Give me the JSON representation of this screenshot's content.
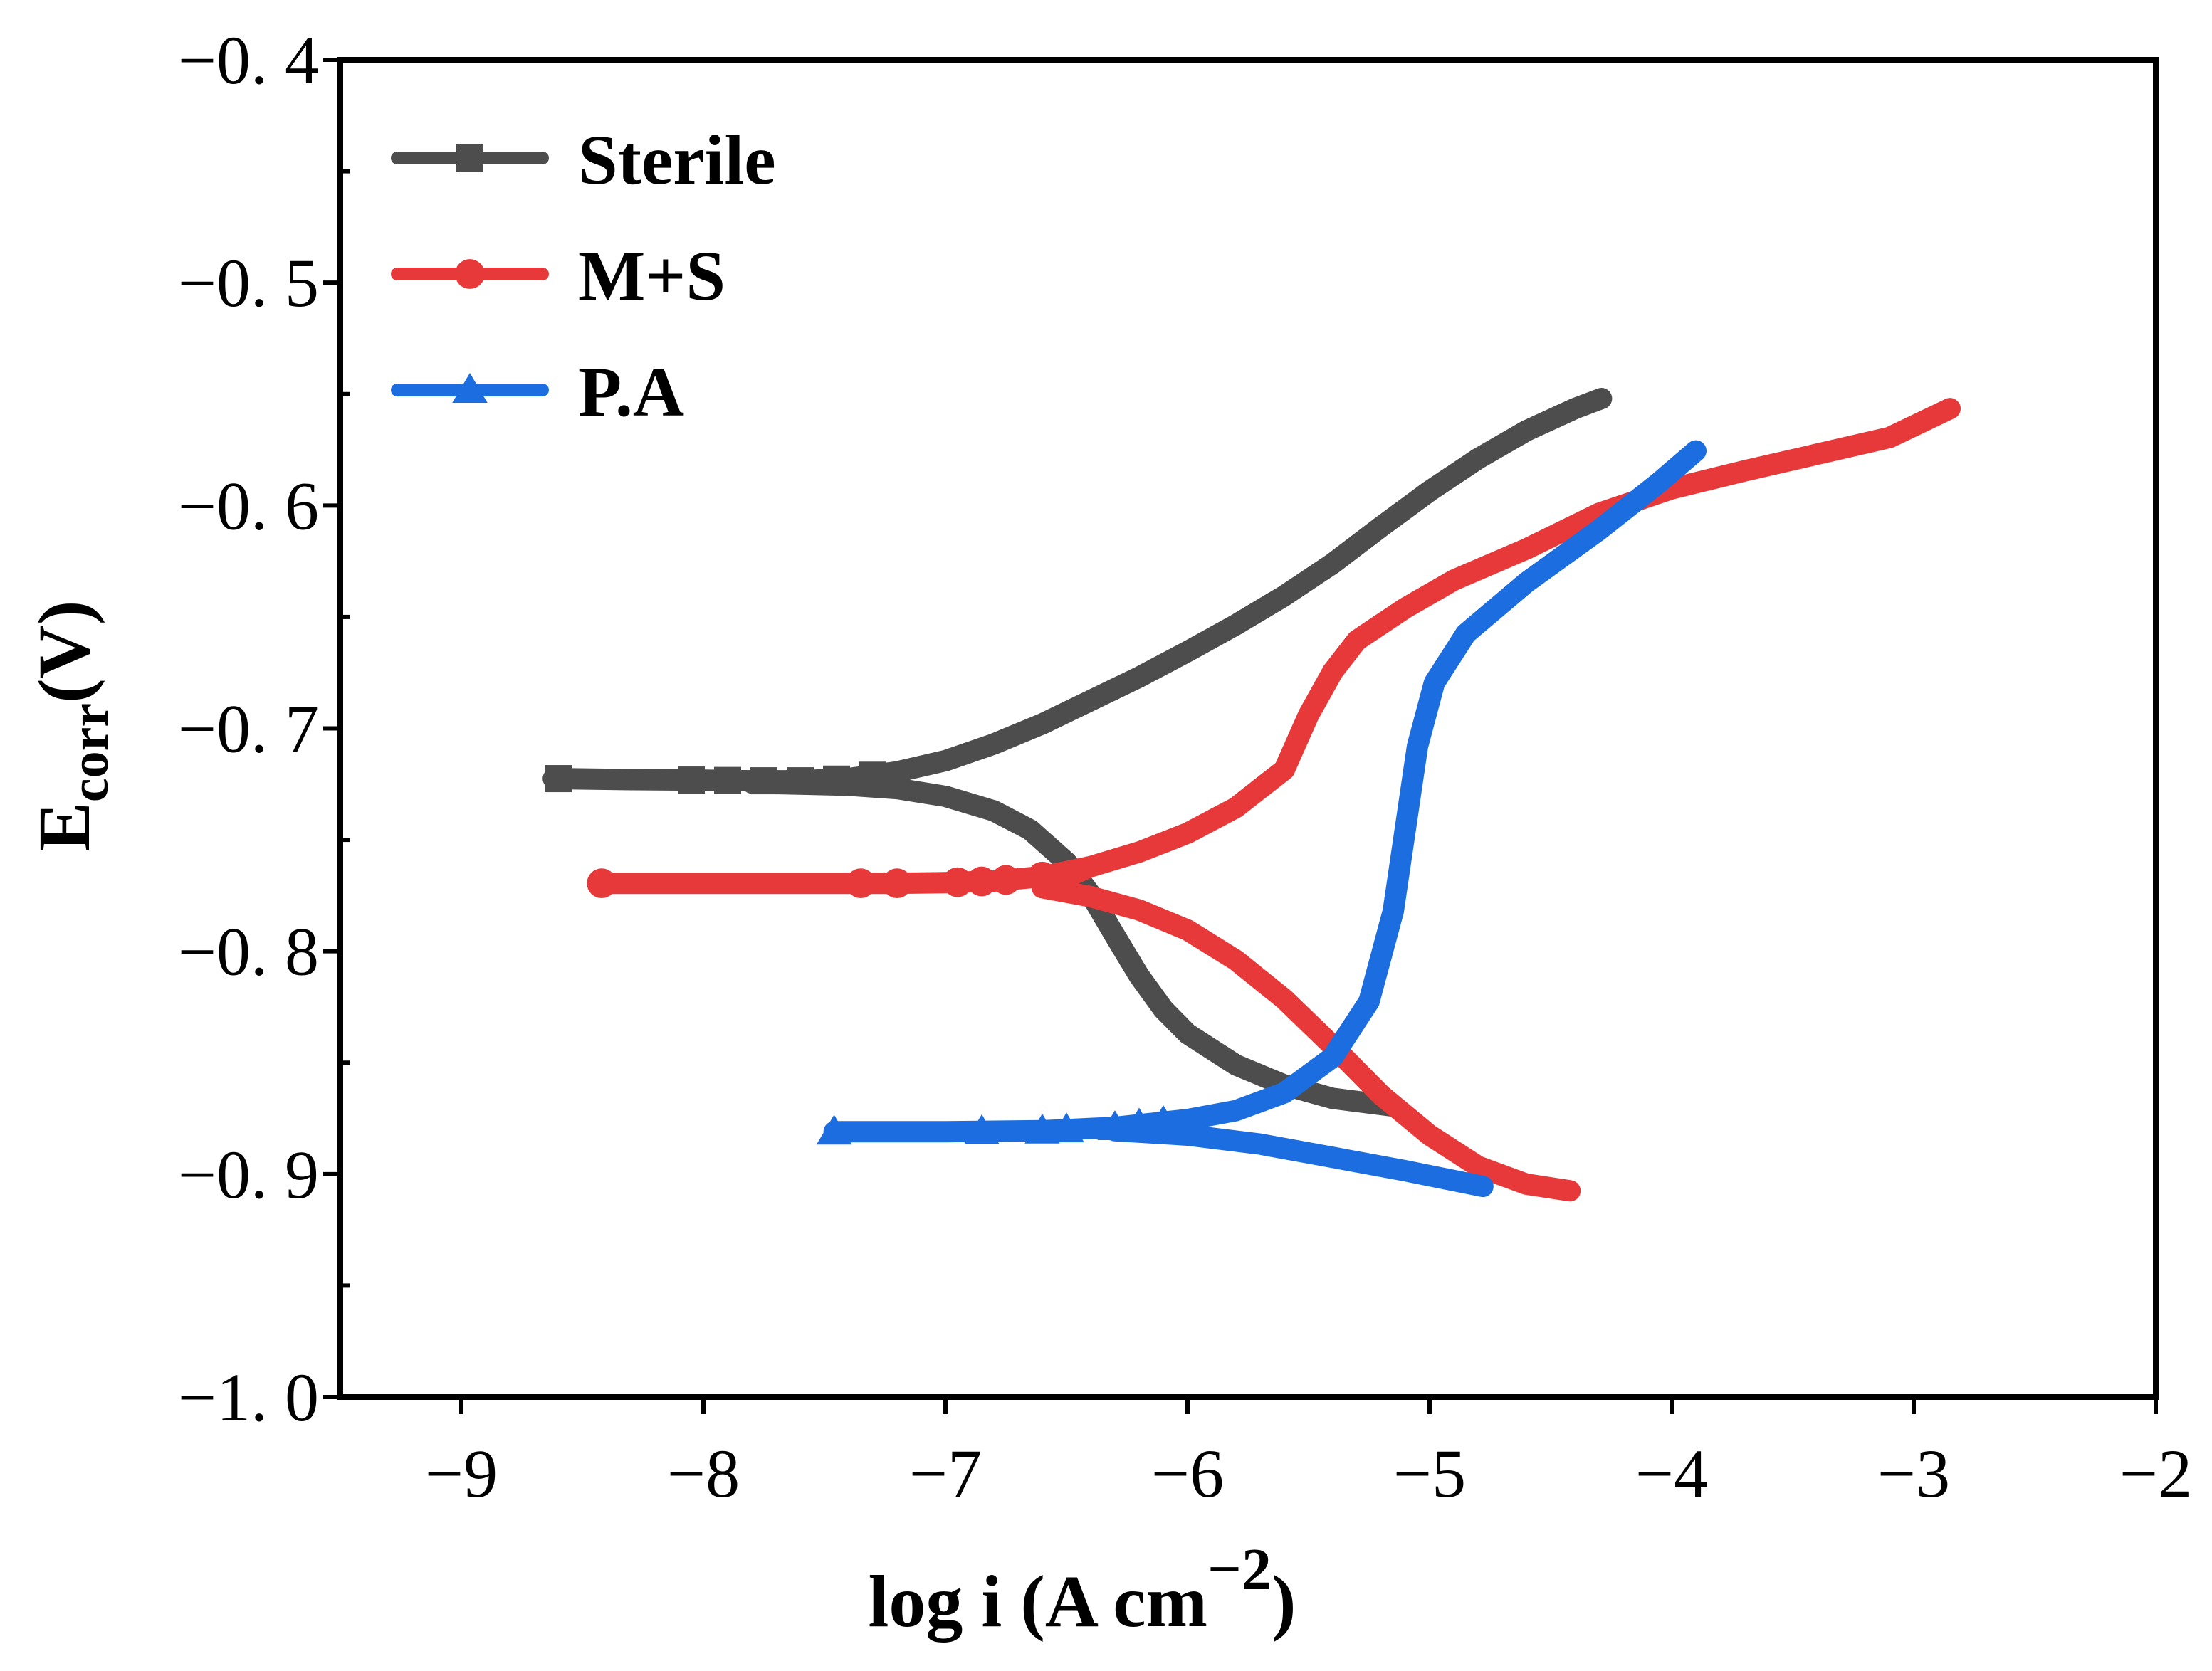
{
  "chart_data": {
    "type": "line",
    "title": "",
    "xlabel": "log i (A cm",
    "xlabel_sup": "−2",
    "xlabel_close": ")",
    "ylabel_main": "E",
    "ylabel_sub": "corr",
    "ylabel_tail": "(V)",
    "xlim": [
      -9.5,
      -2
    ],
    "ylim": [
      -1.0,
      -0.4
    ],
    "xticks": [
      -9,
      -8,
      -7,
      -6,
      -5,
      -4,
      -3,
      -2
    ],
    "xtick_labels": [
      "−9",
      "−8",
      "−7",
      "−6",
      "−5",
      "−4",
      "−3",
      "−2"
    ],
    "yticks": [
      -0.4,
      -0.5,
      -0.6,
      -0.7,
      -0.8,
      -0.9,
      -1.0
    ],
    "ytick_labels": [
      "−0. 4",
      "−0. 5",
      "−0. 6",
      "−0. 7",
      "−0. 8",
      "−0. 9",
      "−1. 0"
    ],
    "y_minor_ticks": [
      -0.45,
      -0.55,
      -0.65,
      -0.75,
      -0.85,
      -0.95
    ],
    "legend_position": "top-left",
    "series": [
      {
        "name": "Sterile",
        "color": "#4d4d4d",
        "marker": "square",
        "points": [
          [
            -8.62,
            -0.7225
          ],
          [
            -8.3,
            -0.723
          ],
          [
            -8.0,
            -0.7232
          ],
          [
            -7.8,
            -0.7235
          ],
          [
            -7.6,
            -0.7235
          ],
          [
            -7.4,
            -0.7225
          ],
          [
            -7.2,
            -0.7195
          ],
          [
            -7.0,
            -0.7145
          ],
          [
            -6.8,
            -0.707
          ],
          [
            -6.6,
            -0.698
          ],
          [
            -6.4,
            -0.6875
          ],
          [
            -6.2,
            -0.677
          ],
          [
            -6.0,
            -0.6655
          ],
          [
            -5.8,
            -0.6535
          ],
          [
            -5.6,
            -0.6405
          ],
          [
            -5.4,
            -0.626
          ],
          [
            -5.2,
            -0.6095
          ],
          [
            -5.0,
            -0.5935
          ],
          [
            -4.8,
            -0.579
          ],
          [
            -4.6,
            -0.5665
          ],
          [
            -4.4,
            -0.5565
          ],
          [
            -4.29,
            -0.552
          ],
          [
            -4.4,
            -0.5565
          ],
          [
            -4.6,
            -0.5665
          ],
          [
            -4.8,
            -0.579
          ],
          [
            -5.0,
            -0.5935
          ],
          [
            -5.2,
            -0.6095
          ],
          [
            -5.4,
            -0.626
          ],
          [
            -5.6,
            -0.6405
          ],
          [
            -5.8,
            -0.6535
          ],
          [
            -6.0,
            -0.6655
          ],
          [
            -6.2,
            -0.677
          ],
          [
            -6.4,
            -0.6875
          ],
          [
            -6.6,
            -0.698
          ],
          [
            -6.8,
            -0.707
          ],
          [
            -7.0,
            -0.7145
          ],
          [
            -7.2,
            -0.7195
          ],
          [
            -7.4,
            -0.7225
          ],
          [
            -7.6,
            -0.7235
          ],
          [
            -7.8,
            -0.7245
          ],
          [
            -7.4,
            -0.7255
          ],
          [
            -7.2,
            -0.727
          ],
          [
            -7.0,
            -0.7305
          ],
          [
            -6.8,
            -0.737
          ],
          [
            -6.65,
            -0.7455
          ],
          [
            -6.5,
            -0.76
          ],
          [
            -6.4,
            -0.7745
          ],
          [
            -6.3,
            -0.793
          ],
          [
            -6.2,
            -0.811
          ],
          [
            -6.1,
            -0.826
          ],
          [
            -6.0,
            -0.837
          ],
          [
            -5.8,
            -0.851
          ],
          [
            -5.6,
            -0.86
          ],
          [
            -5.4,
            -0.866
          ],
          [
            -5.15,
            -0.8695
          ]
        ],
        "marker_x": [
          -8.6,
          -8.05,
          -7.9,
          -7.75,
          -7.6,
          -7.45,
          -7.3
        ]
      },
      {
        "name": "M+S",
        "color": "#e8393a",
        "marker": "circle",
        "points": [
          [
            -8.42,
            -0.7695
          ],
          [
            -8.0,
            -0.7695
          ],
          [
            -7.6,
            -0.7695
          ],
          [
            -7.2,
            -0.7695
          ],
          [
            -7.0,
            -0.7692
          ],
          [
            -6.8,
            -0.7685
          ],
          [
            -6.6,
            -0.7665
          ],
          [
            -6.4,
            -0.762
          ],
          [
            -6.2,
            -0.7555
          ],
          [
            -6.0,
            -0.747
          ],
          [
            -5.8,
            -0.7355
          ],
          [
            -5.6,
            -0.7185
          ],
          [
            -5.5,
            -0.694
          ],
          [
            -5.4,
            -0.6745
          ],
          [
            -5.3,
            -0.6605
          ],
          [
            -5.1,
            -0.646
          ],
          [
            -4.9,
            -0.6335
          ],
          [
            -4.6,
            -0.6195
          ],
          [
            -4.3,
            -0.6035
          ],
          [
            -4.0,
            -0.5925
          ],
          [
            -3.7,
            -0.5845
          ],
          [
            -3.4,
            -0.577
          ],
          [
            -3.1,
            -0.5695
          ],
          [
            -2.85,
            -0.5565
          ],
          [
            -3.1,
            -0.5695
          ],
          [
            -3.4,
            -0.577
          ],
          [
            -3.7,
            -0.5845
          ],
          [
            -4.0,
            -0.5925
          ],
          [
            -4.3,
            -0.6035
          ],
          [
            -4.6,
            -0.6195
          ],
          [
            -4.9,
            -0.6335
          ],
          [
            -5.1,
            -0.646
          ],
          [
            -5.3,
            -0.6605
          ],
          [
            -5.4,
            -0.6745
          ],
          [
            -5.5,
            -0.694
          ],
          [
            -5.6,
            -0.7185
          ],
          [
            -5.8,
            -0.7355
          ],
          [
            -6.0,
            -0.747
          ],
          [
            -6.2,
            -0.7555
          ],
          [
            -6.4,
            -0.762
          ],
          [
            -6.6,
            -0.7715
          ],
          [
            -6.4,
            -0.7755
          ],
          [
            -6.2,
            -0.7815
          ],
          [
            -6.0,
            -0.7905
          ],
          [
            -5.8,
            -0.804
          ],
          [
            -5.6,
            -0.8215
          ],
          [
            -5.4,
            -0.8425
          ],
          [
            -5.2,
            -0.8645
          ],
          [
            -5.0,
            -0.8825
          ],
          [
            -4.8,
            -0.8965
          ],
          [
            -4.6,
            -0.9045
          ],
          [
            -4.42,
            -0.9075
          ]
        ],
        "marker_x": [
          -8.42,
          -7.35,
          -7.2,
          -6.95,
          -6.85,
          -6.75,
          -6.6
        ]
      },
      {
        "name": "P.A",
        "color": "#1c6ee0",
        "marker": "triangle",
        "points": [
          [
            -7.46,
            -0.881
          ],
          [
            -7.0,
            -0.881
          ],
          [
            -6.6,
            -0.8805
          ],
          [
            -6.3,
            -0.879
          ],
          [
            -6.0,
            -0.8755
          ],
          [
            -5.8,
            -0.8715
          ],
          [
            -5.6,
            -0.8635
          ],
          [
            -5.4,
            -0.8475
          ],
          [
            -5.25,
            -0.8225
          ],
          [
            -5.15,
            -0.782
          ],
          [
            -5.1,
            -0.745
          ],
          [
            -5.05,
            -0.708
          ],
          [
            -4.98,
            -0.6795
          ],
          [
            -4.85,
            -0.6575
          ],
          [
            -4.6,
            -0.6345
          ],
          [
            -4.3,
            -0.611
          ],
          [
            -4.05,
            -0.5895
          ],
          [
            -3.9,
            -0.5755
          ],
          [
            -4.05,
            -0.5895
          ],
          [
            -4.3,
            -0.611
          ],
          [
            -4.6,
            -0.6345
          ],
          [
            -4.85,
            -0.6575
          ],
          [
            -4.98,
            -0.6795
          ],
          [
            -5.05,
            -0.708
          ],
          [
            -5.1,
            -0.745
          ],
          [
            -5.15,
            -0.782
          ],
          [
            -5.25,
            -0.8225
          ],
          [
            -5.4,
            -0.8475
          ],
          [
            -5.6,
            -0.8635
          ],
          [
            -5.8,
            -0.8715
          ],
          [
            -6.0,
            -0.8755
          ],
          [
            -6.3,
            -0.8805
          ],
          [
            -6.0,
            -0.8825
          ],
          [
            -5.7,
            -0.8865
          ],
          [
            -5.4,
            -0.8925
          ],
          [
            -5.1,
            -0.8985
          ],
          [
            -4.78,
            -0.9055
          ]
        ],
        "marker_x": [
          -7.46,
          -6.85,
          -6.6,
          -6.5,
          -6.3,
          -6.2,
          -6.1
        ]
      }
    ]
  }
}
